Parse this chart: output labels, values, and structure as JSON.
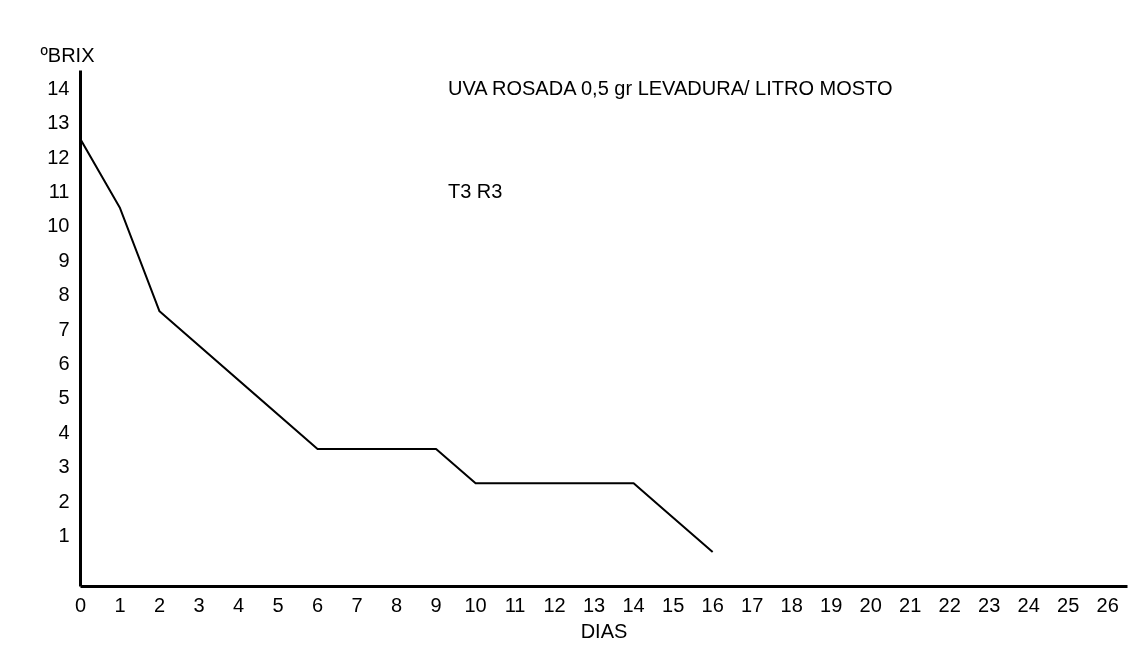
{
  "chart_data": {
    "type": "line",
    "title": "UVA ROSADA 0,5 gr LEVADURA/ LITRO MOSTO",
    "annotations": [
      "T3 R3"
    ],
    "xlabel": "DIAS",
    "ylabel": "ºBRIX",
    "x": [
      0,
      1,
      2,
      6,
      9,
      10,
      14,
      16
    ],
    "series": [
      {
        "color": "#000000",
        "values": [
          12.5,
          10.5,
          7.5,
          3.5,
          3.5,
          2.5,
          2.5,
          0.5
        ]
      }
    ],
    "xlim": [
      0,
      26.5
    ],
    "ylim": [
      -0.5,
      14.5
    ],
    "xticks": [
      0,
      1,
      2,
      3,
      4,
      5,
      6,
      7,
      8,
      9,
      10,
      11,
      12,
      13,
      14,
      15,
      16,
      17,
      18,
      19,
      20,
      21,
      22,
      23,
      24,
      25,
      26
    ],
    "yticks": [
      1,
      2,
      3,
      4,
      5,
      6,
      7,
      8,
      9,
      10,
      11,
      12,
      13,
      14
    ],
    "grid": false,
    "marker": "none",
    "line_style": "solid"
  }
}
